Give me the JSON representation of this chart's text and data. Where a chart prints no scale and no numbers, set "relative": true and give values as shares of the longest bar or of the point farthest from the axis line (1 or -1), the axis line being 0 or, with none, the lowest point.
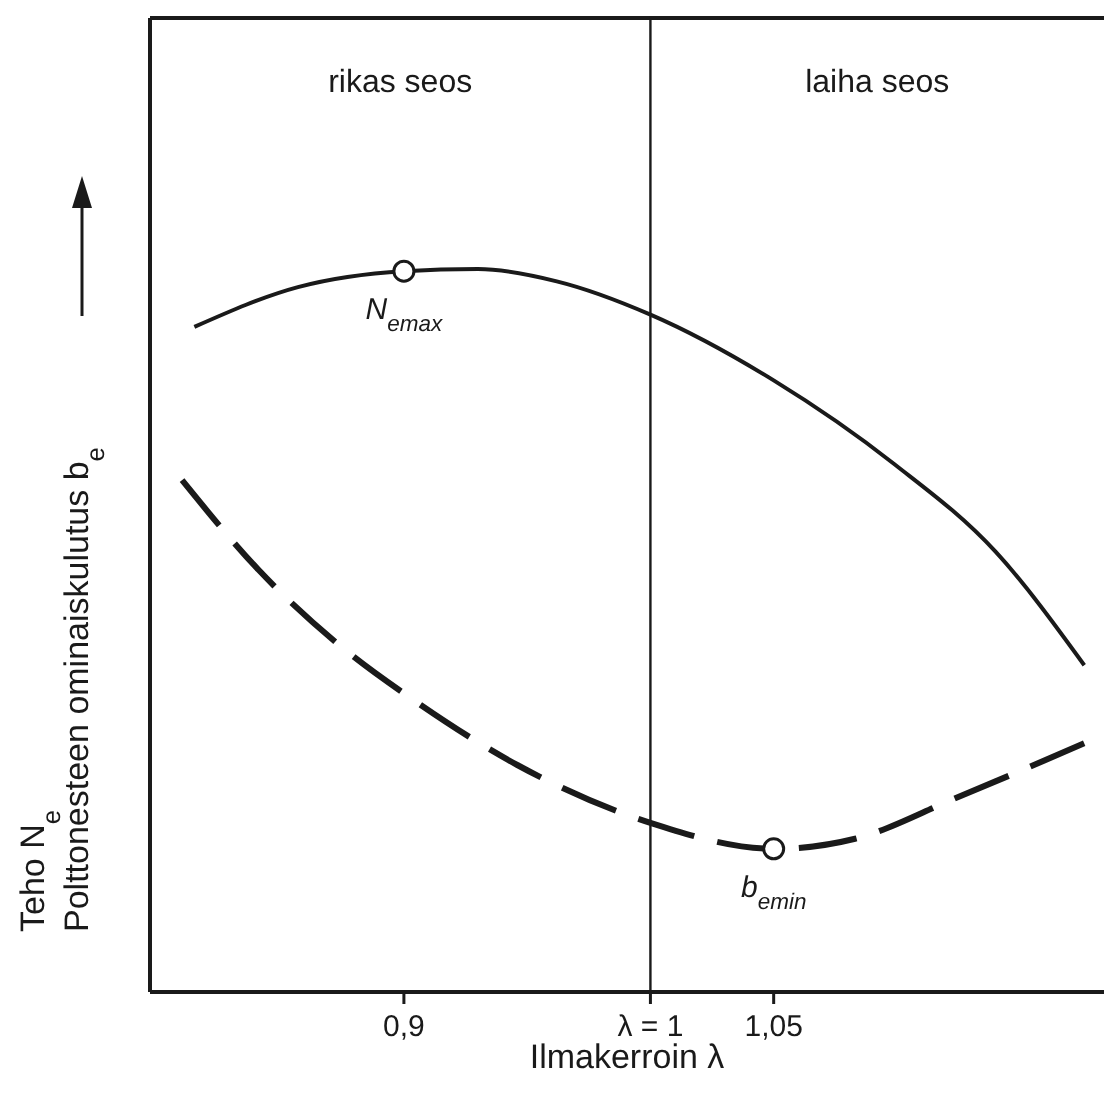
{
  "chart_data": {
    "type": "line",
    "relative": true,
    "xlabel": "Ilmakerroin λ",
    "ylabel": "Teho N$_{e}$\nPolttonesteen ominaiskulutus b$_{e}$",
    "xlim": [
      0.797,
      1.184
    ],
    "xticks": [
      {
        "value": 0.9,
        "label": "0,9"
      },
      {
        "value": 1,
        "label": "λ = 1"
      },
      {
        "value": 1.05,
        "label": "1,05"
      }
    ],
    "grid": false,
    "series": [
      {
        "color": "#1a1a1a",
        "line_style": "solid",
        "x": [
          0.815,
          0.857,
          0.9,
          0.93,
          0.962,
          1.0,
          1.05,
          1.099,
          1.14,
          1.176
        ],
        "values": [
          0.92,
          0.975,
          0.997,
          1,
          0.983,
          0.937,
          0.846,
          0.73,
          0.609,
          0.452
        ]
      },
      {
        "color": "#1a1a1a",
        "line_style": "dashed",
        "x": [
          0.81,
          0.841,
          0.873,
          0.906,
          0.946,
          1.0,
          1.05,
          1.083,
          1.123,
          1.176
        ],
        "values": [
          0.708,
          0.584,
          0.482,
          0.399,
          0.314,
          0.234,
          0.198,
          0.212,
          0.267,
          0.344
        ]
      }
    ],
    "ref_lines": [
      {
        "axis": "x",
        "value": 1
      }
    ],
    "annotations": [
      "rikas seos",
      "laiha seos",
      {
        "text": "N$_{emax}$",
        "x": 0.9,
        "y": 0.997
      },
      {
        "text": "b$_{emin}$",
        "x": 1.05,
        "y": 0.198
      }
    ]
  }
}
